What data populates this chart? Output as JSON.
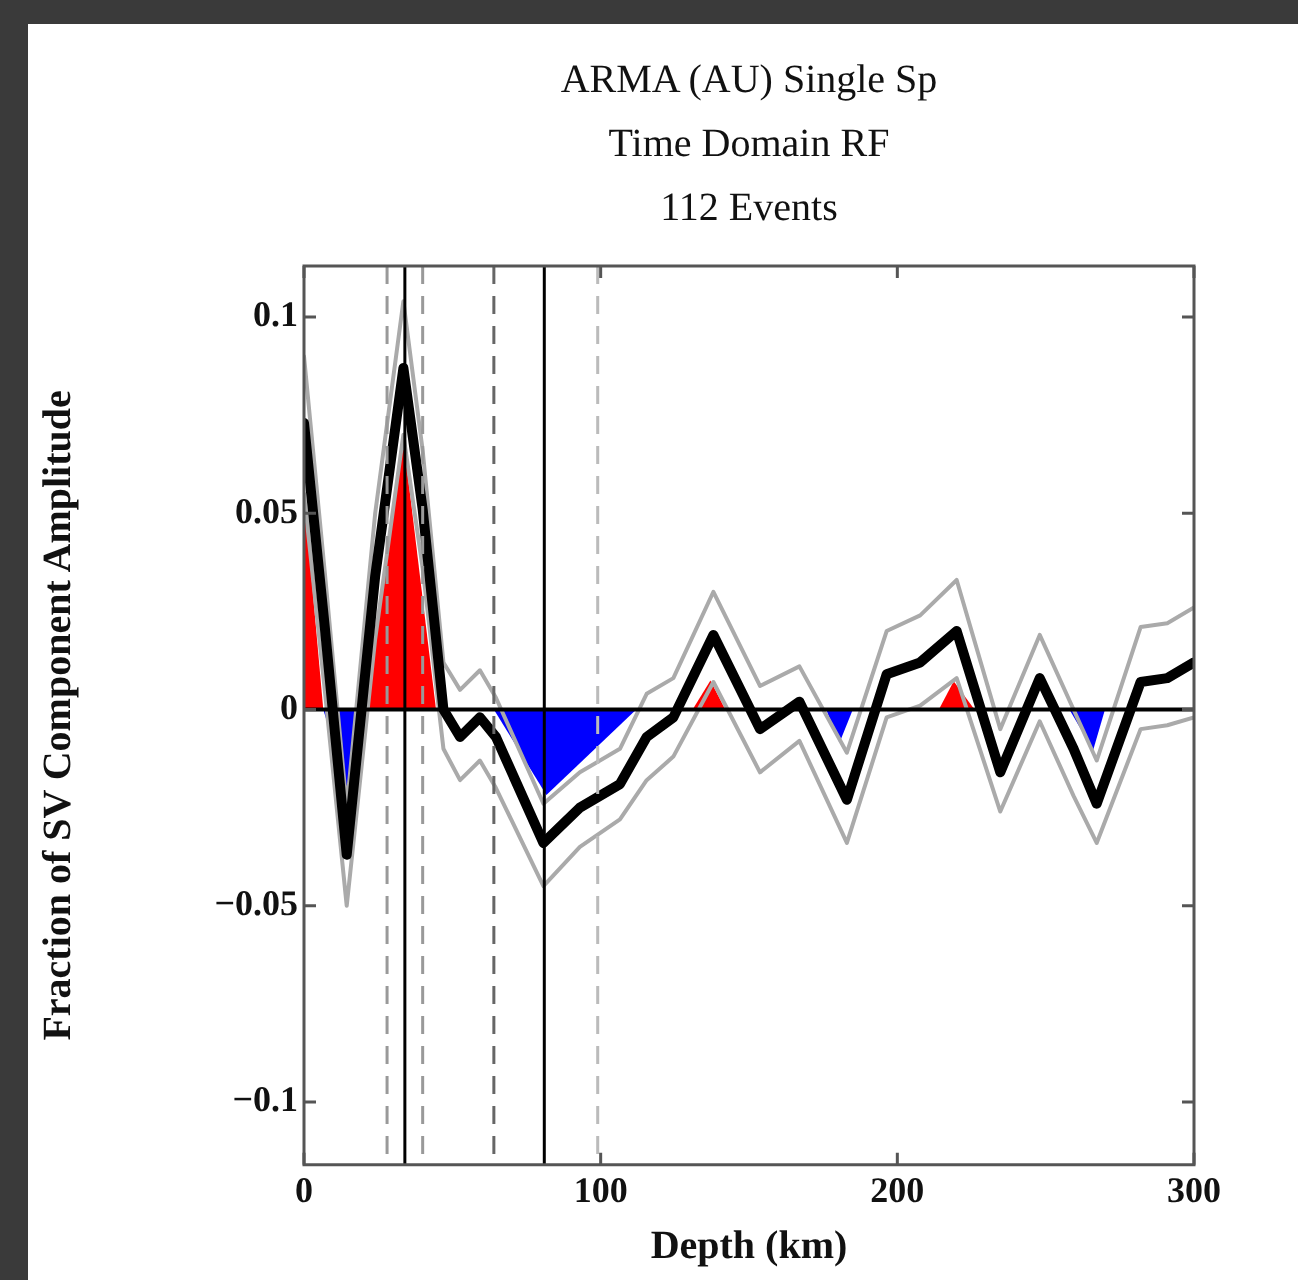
{
  "chart_data": {
    "type": "line",
    "title": "ARMA (AU) Single Sp\nTime Domain RF\n112 Events",
    "xlabel": "Depth (km)",
    "ylabel": "Fraction of SV Component Amplitude",
    "xlim": [
      0,
      300
    ],
    "xticks": [
      0,
      100,
      200,
      300
    ],
    "ylim": [
      -0.116,
      0.113
    ],
    "yticks": [
      -0.1,
      -0.05,
      0,
      0.05,
      0.1
    ],
    "grid": false,
    "legend": false,
    "marker": "none",
    "line_style": "solid",
    "series": [
      {
        "type": "area",
        "color": "#ff0000",
        "x": [
          0,
          6.5,
          14,
          21,
          33.5,
          44.5,
          90,
          131,
          137,
          142,
          180,
          214,
          219,
          226
        ],
        "values": [
          0.055,
          0,
          null,
          0,
          0.069,
          0,
          null,
          0,
          0.0074,
          0,
          null,
          0,
          0.0072,
          0
        ]
      },
      {
        "type": "area",
        "color": "#0000ff",
        "x": [
          6.5,
          15.5,
          21,
          40,
          64,
          81.7,
          112,
          140,
          176,
          180.5,
          185,
          220,
          258,
          266,
          270
        ],
        "values": [
          0,
          -0.0226,
          0,
          null,
          0,
          -0.0218,
          0,
          null,
          0,
          -0.0085,
          0,
          null,
          0,
          -0.0104,
          0
        ]
      },
      {
        "type": "line",
        "color": "#aaaaaa",
        "x": [
          0,
          7,
          14.4,
          24,
          33.5,
          40,
          47,
          52.6,
          59.3,
          64.7,
          80.7,
          93,
          106.5,
          115.5,
          124.5,
          138,
          153.7,
          167,
          183,
          196.4,
          207.7,
          220,
          234.7,
          248,
          259.4,
          267.2,
          282,
          291,
          300
        ],
        "values": [
          0.09,
          0.035,
          -0.025,
          0.05,
          0.104,
          0.066,
          0.012,
          0.005,
          0.01,
          0.003,
          -0.024,
          -0.016,
          -0.01,
          0.004,
          0.008,
          0.03,
          0.006,
          0.011,
          -0.011,
          0.02,
          0.024,
          0.033,
          -0.005,
          0.019,
          0,
          -0.013,
          0.021,
          0.022,
          0.026
        ]
      },
      {
        "type": "line",
        "color": "#aaaaaa",
        "x": [
          0,
          7,
          14.4,
          24,
          33.5,
          40,
          47,
          52.6,
          59.3,
          64.7,
          80.7,
          93,
          106.5,
          115.5,
          124.5,
          138,
          153.7,
          167,
          183,
          196.4,
          207.7,
          220,
          234.7,
          248,
          259.4,
          267.2,
          282,
          291,
          300
        ],
        "values": [
          0.055,
          0.005,
          -0.05,
          0.018,
          0.07,
          0.036,
          -0.01,
          -0.018,
          -0.013,
          -0.02,
          -0.045,
          -0.035,
          -0.028,
          -0.018,
          -0.012,
          0.007,
          -0.016,
          -0.008,
          -0.034,
          -0.002,
          0.001,
          0.008,
          -0.026,
          -0.003,
          -0.022,
          -0.034,
          -0.005,
          -0.004,
          -0.002
        ]
      },
      {
        "type": "line",
        "color": "#000000",
        "x": [
          0,
          7,
          14.4,
          24,
          33.5,
          40,
          47,
          52.6,
          59.3,
          64.7,
          80.7,
          93,
          106.5,
          115.5,
          124.5,
          138,
          153.7,
          167,
          183,
          196.4,
          207.7,
          220,
          234.7,
          248,
          259.4,
          267.2,
          282,
          291,
          300
        ],
        "values": [
          0.073,
          0.021,
          -0.037,
          0.034,
          0.087,
          0.051,
          0,
          -0.007,
          -0.002,
          -0.007,
          -0.034,
          -0.025,
          -0.019,
          -0.007,
          -0.002,
          0.019,
          -0.005,
          0.002,
          -0.023,
          0.009,
          0.012,
          0.02,
          -0.016,
          0.008,
          -0.01,
          -0.024,
          0.007,
          0.008,
          0.012
        ]
      }
    ],
    "ref_lines": [
      {
        "axis": "y",
        "value": 0,
        "color": "#000000",
        "line_style": "solid"
      },
      {
        "axis": "x",
        "value": 28,
        "color": "#999999",
        "line_style": "dashed"
      },
      {
        "axis": "x",
        "value": 34,
        "color": "#000000",
        "line_style": "solid"
      },
      {
        "axis": "x",
        "value": 40,
        "color": "#999999",
        "line_style": "dashed"
      },
      {
        "axis": "x",
        "value": 64,
        "color": "#666666",
        "line_style": "dashed"
      },
      {
        "axis": "x",
        "value": 81,
        "color": "#000000",
        "line_style": "solid"
      },
      {
        "axis": "x",
        "value": 99,
        "color": "#bbbbbb",
        "line_style": "dashed"
      }
    ]
  }
}
